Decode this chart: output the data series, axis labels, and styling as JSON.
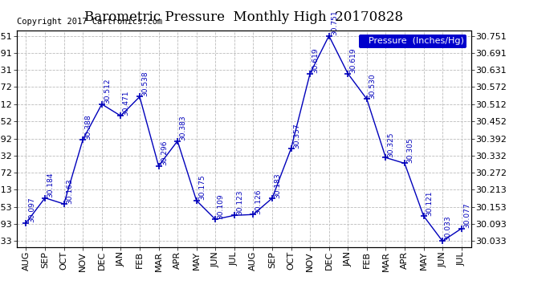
{
  "title": "Barometric Pressure  Monthly High  20170828",
  "copyright": "Copyright 2017 Cartronics.com",
  "legend_label": "Pressure  (Inches/Hg)",
  "months": [
    "AUG",
    "SEP",
    "OCT",
    "NOV",
    "DEC",
    "JAN",
    "FEB",
    "MAR",
    "APR",
    "MAY",
    "JUN",
    "JUL",
    "AUG",
    "SEP",
    "OCT",
    "NOV",
    "DEC",
    "JAN",
    "FEB",
    "MAR",
    "APR",
    "MAY",
    "JUN",
    "JUL"
  ],
  "values": [
    30.097,
    30.184,
    30.163,
    30.388,
    30.512,
    30.471,
    30.538,
    30.296,
    30.383,
    30.175,
    30.109,
    30.123,
    30.126,
    30.183,
    30.357,
    30.619,
    30.751,
    30.619,
    30.53,
    30.325,
    30.305,
    30.121,
    30.033,
    30.077
  ],
  "yticks": [
    30.033,
    30.093,
    30.153,
    30.213,
    30.272,
    30.332,
    30.392,
    30.452,
    30.512,
    30.572,
    30.631,
    30.691,
    30.751
  ],
  "ylim": [
    30.013,
    30.771
  ],
  "line_color": "#0000bb",
  "marker": "+",
  "marker_size": 6,
  "label_color": "#0000bb",
  "label_fontsize": 6.5,
  "title_fontsize": 12,
  "copyright_fontsize": 7.5,
  "bg_color": "#ffffff",
  "grid_color": "#bbbbbb",
  "legend_bg": "#0000cc",
  "legend_text_color": "#ffffff",
  "tick_fontsize": 8,
  "border_color": "#000000"
}
